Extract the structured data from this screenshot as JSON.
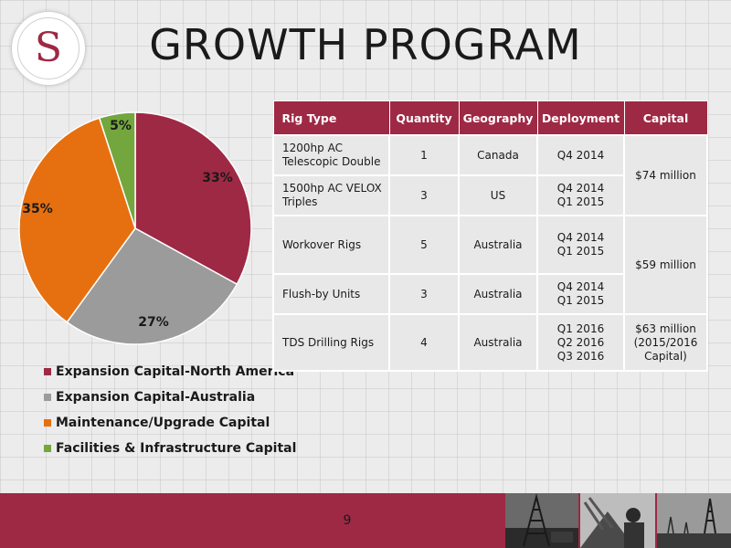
{
  "logo": {
    "letter": "S"
  },
  "title": "GROWTH PROGRAM",
  "chart_data": {
    "type": "pie",
    "title": "",
    "slices": [
      {
        "label": "Expansion Capital-North America",
        "value": 33,
        "display": "33%",
        "color": "#9e2944"
      },
      {
        "label": "Expansion Capital-Australia",
        "value": 27,
        "display": "27%",
        "color": "#9b9b9b"
      },
      {
        "label": "Maintenance/Upgrade Capital",
        "value": 35,
        "display": "35%",
        "color": "#e6700f"
      },
      {
        "label": "Facilities & Infrastructure Capital",
        "value": 5,
        "display": "5%",
        "color": "#74a63e"
      }
    ],
    "legend_position": "bottom"
  },
  "table": {
    "headers": [
      "Rig Type",
      "Quantity",
      "Geography",
      "Deployment",
      "Capital"
    ],
    "rows": [
      {
        "rig_type": "1200hp AC\nTelescopic Double",
        "quantity": "1",
        "geography": "Canada",
        "deployment": "Q4 2014"
      },
      {
        "rig_type": "1500hp AC VELOX\nTriples",
        "quantity": "3",
        "geography": "US",
        "deployment": "Q4 2014\nQ1 2015"
      },
      {
        "rig_type": "Workover Rigs",
        "quantity": "5",
        "geography": "Australia",
        "deployment": "Q4 2014\nQ1 2015"
      },
      {
        "rig_type": "Flush-by Units",
        "quantity": "3",
        "geography": "Australia",
        "deployment": "Q4 2014\nQ1 2015"
      },
      {
        "rig_type": "TDS Drilling Rigs",
        "quantity": "4",
        "geography": "Australia",
        "deployment": "Q1 2016\nQ2 2016\nQ3 2016"
      }
    ],
    "capital": [
      "$74 million",
      "$59 million",
      "$63 million\n(2015/2016\nCapital)"
    ]
  },
  "footer": {
    "page_number": "9"
  }
}
